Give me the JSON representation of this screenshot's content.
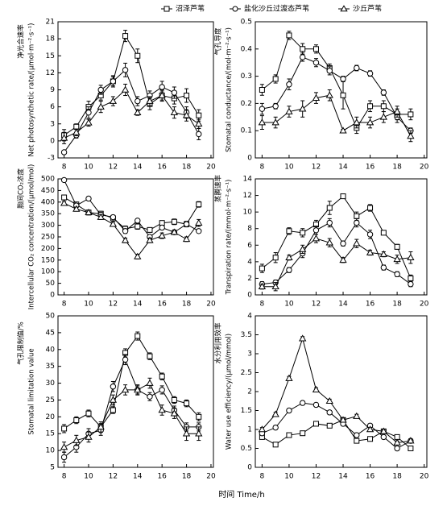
{
  "chart_data": [
    {
      "type": "line",
      "ylabel_cn": "净光合速率",
      "ylabel_en": "Net photosynthetic rate/(μmol·m⁻²·s⁻¹)",
      "x": [
        8,
        9,
        10,
        11,
        12,
        13,
        14,
        15,
        16,
        17,
        18,
        19
      ],
      "xlim": [
        7.5,
        20.2
      ],
      "xticks": [
        8,
        10,
        12,
        14,
        16,
        18,
        20
      ],
      "ylim": [
        -3,
        21
      ],
      "yticks": [
        -3,
        0,
        3,
        6,
        9,
        12,
        15,
        18,
        21
      ],
      "series": [
        {
          "name": "沼泽芦苇",
          "marker": "square",
          "color": "#000000",
          "values": [
            1,
            2.5,
            6,
            8,
            10.5,
            18.5,
            15,
            6.5,
            8,
            7.5,
            8,
            4.5
          ],
          "errors": [
            1,
            0.5,
            1,
            0.8,
            0.8,
            1,
            1.2,
            1,
            1,
            1,
            1.2,
            1
          ]
        },
        {
          "name": "盐化沙丘过渡态芦苇",
          "marker": "circle",
          "color": "#000000",
          "values": [
            -2,
            1,
            5,
            9,
            10.5,
            12.5,
            7,
            8,
            9.5,
            8.5,
            5,
            1.2
          ],
          "errors": [
            0.3,
            0.5,
            1,
            0.8,
            1,
            1.2,
            0.8,
            0.8,
            1,
            1,
            1,
            1
          ]
        },
        {
          "name": "沙丘芦苇",
          "marker": "triangle",
          "color": "#000000",
          "values": [
            0.5,
            1.5,
            3.2,
            6,
            7,
            9,
            5,
            7,
            8,
            5,
            4.5,
            3
          ],
          "errors": [
            1,
            0.6,
            0.6,
            1,
            0.8,
            1,
            0.5,
            0.8,
            0.8,
            1,
            1,
            0.8
          ]
        }
      ]
    },
    {
      "type": "line",
      "ylabel_cn": "气孔导度",
      "ylabel_en": "Stomatal conductance/(mol·m⁻²·s⁻¹)",
      "x": [
        8,
        9,
        10,
        11,
        12,
        13,
        14,
        15,
        16,
        17,
        18,
        19
      ],
      "xlim": [
        7.5,
        20.2
      ],
      "xticks": [
        8,
        10,
        12,
        14,
        16,
        18,
        20
      ],
      "ylim": [
        0,
        0.5
      ],
      "yticks": [
        0,
        0.1,
        0.2,
        0.3,
        0.4,
        0.5
      ],
      "series": [
        {
          "name": "沼泽芦苇",
          "marker": "square",
          "color": "#000000",
          "values": [
            0.25,
            0.29,
            0.45,
            0.4,
            0.4,
            0.33,
            0.23,
            0.11,
            0.19,
            0.19,
            0.16,
            0.16
          ],
          "errors": [
            0.02,
            0.015,
            0.015,
            0.02,
            0.015,
            0.015,
            0.05,
            0.02,
            0.02,
            0.02,
            0.02,
            0.02
          ]
        },
        {
          "name": "盐化沙丘过渡态芦苇",
          "marker": "circle",
          "color": "#000000",
          "values": [
            0.18,
            0.19,
            0.27,
            0.37,
            0.35,
            0.32,
            0.29,
            0.33,
            0.31,
            0.24,
            0.15,
            0.1
          ],
          "errors": [
            0.02,
            0.01,
            0.02,
            0.015,
            0.015,
            0.015,
            0.01,
            0.01,
            0.01,
            0.01,
            0.02,
            0.01
          ]
        },
        {
          "name": "沙丘芦苇",
          "marker": "triangle",
          "color": "#000000",
          "values": [
            0.13,
            0.13,
            0.17,
            0.18,
            0.22,
            0.23,
            0.1,
            0.13,
            0.13,
            0.15,
            0.17,
            0.08
          ],
          "errors": [
            0.025,
            0.02,
            0.02,
            0.03,
            0.02,
            0.02,
            0.005,
            0.02,
            0.02,
            0.02,
            0.02,
            0.02
          ]
        }
      ]
    },
    {
      "type": "line",
      "ylabel_cn": "胞间CO₂浓度",
      "ylabel_en": "Intercellular CO₂ concentration/(μmol/mol)",
      "x": [
        8,
        9,
        10,
        11,
        12,
        13,
        14,
        15,
        16,
        17,
        18,
        19
      ],
      "xlim": [
        7.5,
        20.2
      ],
      "xticks": [
        8,
        10,
        12,
        14,
        16,
        18,
        20
      ],
      "ylim": [
        0,
        500
      ],
      "yticks": [
        0,
        50,
        100,
        150,
        200,
        250,
        300,
        350,
        400,
        450,
        500
      ],
      "series": [
        {
          "name": "沼泽芦苇",
          "marker": "square",
          "color": "#000000",
          "values": [
            420,
            390,
            355,
            350,
            330,
            285,
            295,
            280,
            310,
            315,
            305,
            390
          ],
          "errors": [
            10,
            8,
            10,
            10,
            10,
            12,
            12,
            10,
            10,
            12,
            12,
            12
          ]
        },
        {
          "name": "盐化沙丘过渡态芦苇",
          "marker": "circle",
          "color": "#000000",
          "values": [
            495,
            385,
            415,
            345,
            335,
            275,
            320,
            250,
            290,
            270,
            305,
            275
          ],
          "errors": [
            5,
            8,
            8,
            10,
            8,
            10,
            8,
            8,
            8,
            8,
            10,
            8
          ]
        },
        {
          "name": "沙丘芦苇",
          "marker": "triangle",
          "color": "#000000",
          "values": [
            395,
            370,
            355,
            335,
            305,
            235,
            165,
            235,
            255,
            270,
            240,
            310
          ],
          "errors": [
            8,
            8,
            10,
            10,
            10,
            10,
            10,
            10,
            12,
            10,
            10,
            15
          ]
        }
      ]
    },
    {
      "type": "line",
      "ylabel_cn": "蒸腾速率",
      "ylabel_en": "Transpiration rate/(mmol·m⁻²·s⁻¹)",
      "x": [
        8,
        9,
        10,
        11,
        12,
        13,
        14,
        15,
        16,
        17,
        18,
        19
      ],
      "xlim": [
        7.5,
        20.2
      ],
      "xticks": [
        8,
        10,
        12,
        14,
        16,
        18,
        20
      ],
      "ylim": [
        0,
        14
      ],
      "yticks": [
        0,
        2,
        4,
        6,
        8,
        10,
        12,
        14
      ],
      "series": [
        {
          "name": "沼泽芦苇",
          "marker": "square",
          "color": "#000000",
          "values": [
            3.2,
            4.5,
            7.7,
            7.5,
            8.5,
            10.5,
            11.9,
            9.5,
            10.5,
            7.5,
            5.8,
            2
          ],
          "errors": [
            0.5,
            0.6,
            0.4,
            0.5,
            0.5,
            0.8,
            0.1,
            0.5,
            0.4,
            0.2,
            0.3,
            0.4
          ]
        },
        {
          "name": "盐化沙丘过渡态芦苇",
          "marker": "circle",
          "color": "#000000",
          "values": [
            1.3,
            1.5,
            3,
            5,
            7.8,
            8.7,
            6.2,
            8.7,
            7.3,
            3.3,
            2.5,
            1.3
          ],
          "errors": [
            0.3,
            0.3,
            0.3,
            0.5,
            0.5,
            0.5,
            0.3,
            0.5,
            0.5,
            0.3,
            0.3,
            0.3
          ]
        },
        {
          "name": "沙丘芦苇",
          "marker": "triangle",
          "color": "#000000",
          "values": [
            1,
            1,
            4.5,
            5.5,
            6.8,
            6.3,
            4.2,
            6.2,
            5.1,
            4.9,
            4.3,
            4.5
          ],
          "errors": [
            0.3,
            0.5,
            0.3,
            0.5,
            0.5,
            0.5,
            0.3,
            0.5,
            0.3,
            0.3,
            0.5,
            0.7
          ]
        }
      ]
    },
    {
      "type": "line",
      "ylabel_cn": "气孔限制值/%",
      "ylabel_en": "Stomatal limitation value",
      "x": [
        8,
        9,
        10,
        11,
        12,
        13,
        14,
        15,
        16,
        17,
        18,
        19
      ],
      "xlim": [
        7.5,
        20.2
      ],
      "xticks": [
        8,
        10,
        12,
        14,
        16,
        18,
        20
      ],
      "ylim": [
        5,
        50
      ],
      "yticks": [
        5,
        10,
        15,
        20,
        25,
        30,
        35,
        40,
        45,
        50
      ],
      "series": [
        {
          "name": "沼泽芦苇",
          "marker": "square",
          "color": "#000000",
          "values": [
            16.5,
            19,
            21,
            17,
            22,
            39,
            44,
            38,
            32,
            25,
            24,
            20
          ],
          "errors": [
            1.2,
            1,
            1,
            1,
            1,
            1.2,
            1.2,
            1,
            1,
            1,
            1,
            1.2
          ]
        },
        {
          "name": "盐化沙丘过渡态芦苇",
          "marker": "circle",
          "color": "#000000",
          "values": [
            8,
            11,
            15,
            16,
            29,
            37,
            28,
            26,
            28,
            22,
            17,
            17
          ],
          "errors": [
            1.5,
            1.5,
            1.5,
            1.5,
            1.5,
            1.5,
            1.2,
            1.2,
            1.2,
            1.2,
            1.2,
            1.2
          ]
        },
        {
          "name": "沙丘芦苇",
          "marker": "triangle",
          "color": "#000000",
          "values": [
            11,
            13,
            14,
            17,
            25,
            28,
            28,
            30,
            22,
            21,
            15,
            15
          ],
          "errors": [
            1.5,
            1.5,
            1.5,
            1.5,
            1.5,
            1.5,
            1.5,
            1.5,
            1.5,
            1.5,
            2,
            2
          ]
        }
      ]
    },
    {
      "type": "line",
      "ylabel_cn": "水分利用效率",
      "ylabel_en": "Water use efficiency/(μmol/mmol)",
      "x": [
        8,
        9,
        10,
        11,
        12,
        13,
        14,
        15,
        16,
        17,
        18,
        19
      ],
      "xlim": [
        7.5,
        20.2
      ],
      "xticks": [
        8,
        10,
        12,
        14,
        16,
        18,
        20
      ],
      "ylim": [
        0,
        4
      ],
      "yticks": [
        0,
        0.5,
        1,
        1.5,
        2,
        2.5,
        3,
        3.5,
        4
      ],
      "xlabel": "时间 Time/h",
      "series": [
        {
          "name": "沼泽芦苇",
          "marker": "square",
          "color": "#000000",
          "values": [
            0.8,
            0.6,
            0.85,
            0.9,
            1.15,
            1.1,
            1.25,
            0.7,
            0.75,
            0.95,
            0.8,
            0.5
          ],
          "errors": [
            0.05,
            0.05,
            0.05,
            0.05,
            0.05,
            0.05,
            0.05,
            0.05,
            0.05,
            0.05,
            0.05,
            0.05
          ]
        },
        {
          "name": "盐化沙丘过渡态芦苇",
          "marker": "circle",
          "color": "#000000",
          "values": [
            0.9,
            1.05,
            1.5,
            1.7,
            1.65,
            1.45,
            1.15,
            0.85,
            1.1,
            0.8,
            0.5,
            0.7
          ],
          "errors": [
            0.05,
            0.05,
            0.05,
            0.05,
            0.05,
            0.05,
            0.05,
            0.05,
            0.05,
            0.05,
            0.05,
            0.05
          ]
        },
        {
          "name": "沙丘芦苇",
          "marker": "triangle",
          "color": "#000000",
          "values": [
            1,
            1.4,
            2.35,
            3.4,
            2.05,
            1.75,
            1.25,
            1.35,
            1,
            0.95,
            0.65,
            0.7
          ],
          "errors": [
            0.05,
            0.05,
            0.05,
            0.05,
            0.05,
            0.05,
            0.05,
            0.05,
            0.05,
            0.05,
            0.05,
            0.05
          ]
        }
      ]
    }
  ]
}
